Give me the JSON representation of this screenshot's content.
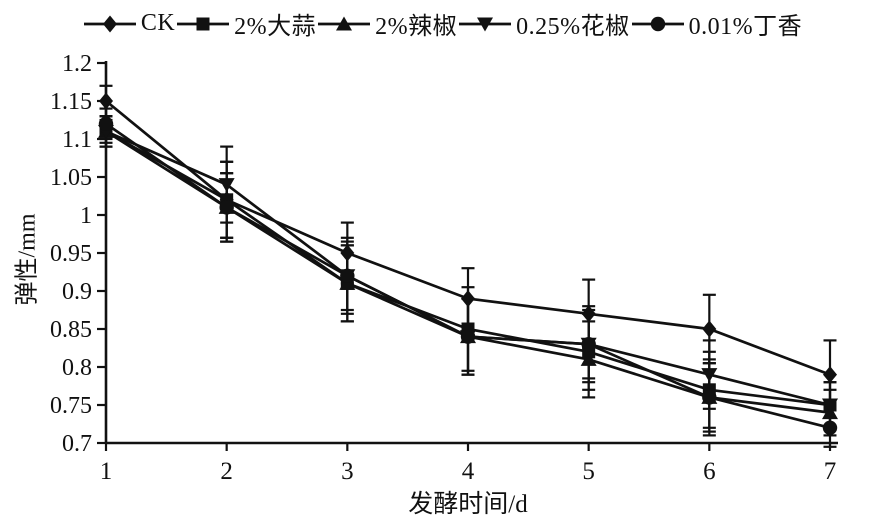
{
  "chart_data": {
    "type": "line",
    "title": "",
    "xlabel": "发酵时间/d",
    "ylabel": "弹性/mm",
    "xlim": [
      1,
      7
    ],
    "ylim": [
      0.7,
      1.2
    ],
    "x": [
      1,
      2,
      3,
      4,
      5,
      6,
      7
    ],
    "x_tick_labels": [
      "1",
      "2",
      "3",
      "4",
      "5",
      "6",
      "7"
    ],
    "y_ticks": [
      0.7,
      0.75,
      0.8,
      0.85,
      0.9,
      0.95,
      1,
      1.05,
      1.1,
      1.15,
      1.2
    ],
    "y_tick_labels": [
      "0.7",
      "0.75",
      "0.8",
      "0.85",
      "0.9",
      "0.95",
      "1",
      "1.05",
      "1.1",
      "1.15",
      "1.2"
    ],
    "grid": false,
    "legend_position": "top",
    "line_color": "#111111",
    "series": [
      {
        "name": "CK",
        "marker": "diamond",
        "values": [
          1.15,
          1.02,
          0.95,
          0.89,
          0.87,
          0.85,
          0.79
        ],
        "errors": [
          0.02,
          0.05,
          0.04,
          0.04,
          0.045,
          0.045,
          0.045
        ]
      },
      {
        "name": "2%大蒜",
        "marker": "square",
        "values": [
          1.11,
          1.02,
          0.91,
          0.85,
          0.82,
          0.77,
          0.75
        ],
        "errors": [
          0.02,
          0.05,
          0.05,
          0.055,
          0.05,
          0.05,
          0.03
        ]
      },
      {
        "name": "2%辣椒",
        "marker": "triangle-up",
        "values": [
          1.11,
          1.01,
          0.91,
          0.84,
          0.81,
          0.76,
          0.74
        ],
        "errors": [
          0.015,
          0.045,
          0.05,
          0.05,
          0.05,
          0.05,
          0.03
        ]
      },
      {
        "name": "0.25%花椒",
        "marker": "triangle-down",
        "values": [
          1.11,
          1.04,
          0.92,
          0.84,
          0.83,
          0.79,
          0.75
        ],
        "errors": [
          0.02,
          0.05,
          0.045,
          0.05,
          0.045,
          0.045,
          0.03
        ]
      },
      {
        "name": "0.01%丁香",
        "marker": "circle",
        "values": [
          1.12,
          1.01,
          0.92,
          0.84,
          0.83,
          0.76,
          0.72
        ],
        "errors": [
          0.02,
          0.045,
          0.05,
          0.05,
          0.05,
          0.045,
          0.025
        ]
      }
    ]
  }
}
